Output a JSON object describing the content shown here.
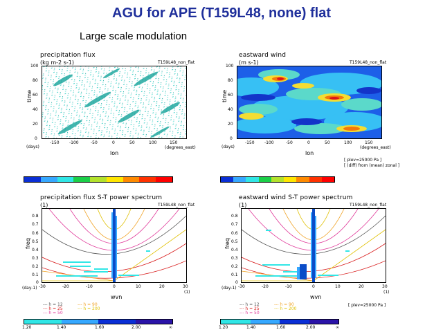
{
  "header": {
    "title": "AGU for APE (T159L48, none) flat",
    "subtitle": "Large scale modulation"
  },
  "top_left": {
    "title": "precipitation flux",
    "units": "(kg m-2 s-1)",
    "tag": "T159L48_non_flat",
    "xlabel": "lon",
    "ylabel": "time",
    "xunit": "(degrees_east)",
    "yunit": "(days)",
    "xticks": [
      "-150",
      "-100",
      "-50",
      "0",
      "50",
      "100",
      "150"
    ],
    "yticks": [
      "0",
      "20",
      "40",
      "60",
      "80",
      "100"
    ]
  },
  "top_right": {
    "title": "eastward wind",
    "units": "(m s-1)",
    "tag": "T159L48_non_flat",
    "xlabel": "lon",
    "ylabel": "time",
    "xunit": "(degrees_east)",
    "yunit": "(days)",
    "xticks": [
      "-150",
      "-100",
      "-50",
      "0",
      "50",
      "100",
      "150"
    ],
    "yticks": [
      "0",
      "20",
      "40",
      "60",
      "80",
      "100"
    ]
  },
  "top_right_note": {
    "line1": "[ plev=25000 Pa ]",
    "line2": "[ (diff) from (mean) zonal ]"
  },
  "colorbars_top": {
    "colors": [
      "#0a2fd6",
      "#36a8ff",
      "#30e6e6",
      "#1bcf48",
      "#b3e22c",
      "#ffe600",
      "#ff8a00",
      "#ff3200",
      "#ff0000"
    ]
  },
  "bottom_left": {
    "title": "precipitation flux S-T power spectrum",
    "units": "(1)",
    "tag": "T159L48_non_flat",
    "xlabel": "wvn",
    "ylabel": "freq",
    "xunit": "(1)",
    "yunit": "(day-1)",
    "xticks": [
      "-30",
      "-20",
      "-10",
      "0",
      "10",
      "20",
      "30"
    ],
    "yticks": [
      "0",
      "0.1",
      "0.2",
      "0.3",
      "0.4",
      "0.5",
      "0.6",
      "0.7",
      "0.8"
    ]
  },
  "bottom_right": {
    "title": "eastward wind S-T power spectrum",
    "units": "(1)",
    "tag": "T159L48_non_flat",
    "xlabel": "wvn",
    "ylabel": "freq",
    "xunit": "(1)",
    "yunit": "(day-1)",
    "xticks": [
      "-30",
      "-20",
      "-10",
      "0",
      "10",
      "20",
      "30"
    ],
    "yticks": [
      "0",
      "0.1",
      "0.2",
      "0.3",
      "0.4",
      "0.5",
      "0.6",
      "0.7",
      "0.8"
    ],
    "note": "[ plev=25000 Pa ]"
  },
  "legend": {
    "left_col": [
      "h = 12",
      "h = 25",
      "h = 50"
    ],
    "right_col": [
      "h = 90",
      "h = 200"
    ],
    "colors_left": [
      "#555555",
      "#d92020",
      "#e03a9a"
    ],
    "colors_right": [
      "#f0a020",
      "#e0c000"
    ]
  },
  "spectrum_colorbar": {
    "ticks": [
      "1.20",
      "1.40",
      "1.60",
      "2.00",
      "∞"
    ],
    "colors": [
      "#30e6e6",
      "#36a8ff",
      "#0a2fd6",
      "#2a13a8"
    ]
  }
}
